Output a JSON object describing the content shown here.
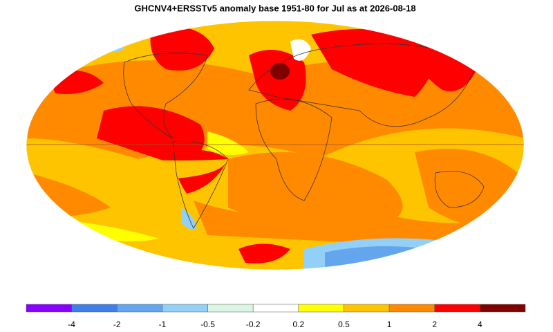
{
  "title": "GHCNV4+ERSSTv5 anomaly base 1951-80 for Jul as at 2026-08-18",
  "legend": {
    "colors": [
      "#8a00ff",
      "#3f7fe6",
      "#64a6ee",
      "#92d0f8",
      "#daf5e2",
      "#ffffff",
      "#ffff00",
      "#ffc400",
      "#ff8a00",
      "#ff0000",
      "#800000"
    ],
    "labels": [
      -4,
      -2,
      -1,
      -0.5,
      -0.2,
      0.2,
      0.5,
      1,
      2,
      4
    ]
  }
}
